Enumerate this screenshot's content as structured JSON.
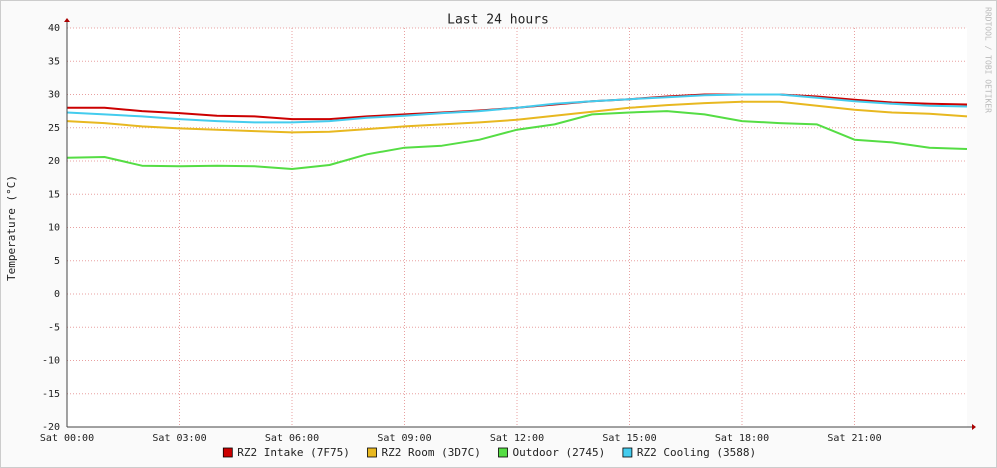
{
  "chart_data": {
    "type": "line",
    "title": "Last 24 hours",
    "y_label": "Temperature (°C)",
    "watermark": "RRDTOOL / TOBI OETIKER",
    "x": [
      0,
      1,
      2,
      3,
      4,
      5,
      6,
      7,
      8,
      9,
      10,
      11,
      12,
      13,
      14,
      15,
      16,
      17,
      18,
      19,
      20,
      21,
      22,
      23,
      24
    ],
    "xlim": [
      0,
      24
    ],
    "xticks": [
      {
        "value": 0,
        "label": "Sat 00:00"
      },
      {
        "value": 3,
        "label": "Sat 03:00"
      },
      {
        "value": 6,
        "label": "Sat 06:00"
      },
      {
        "value": 9,
        "label": "Sat 09:00"
      },
      {
        "value": 12,
        "label": "Sat 12:00"
      },
      {
        "value": 15,
        "label": "Sat 15:00"
      },
      {
        "value": 18,
        "label": "Sat 18:00"
      },
      {
        "value": 21,
        "label": "Sat 21:00"
      }
    ],
    "ylim": [
      -20,
      40
    ],
    "yticks": [
      -20,
      -15,
      -10,
      -5,
      0,
      5,
      10,
      15,
      20,
      25,
      30,
      35,
      40
    ],
    "grid": true,
    "legend": "bottom",
    "series": [
      {
        "name": "RZ2 Intake (7F75)",
        "color": "#cc0000",
        "values": [
          28,
          28,
          27.5,
          27.2,
          26.8,
          26.7,
          26.3,
          26.3,
          26.7,
          27,
          27.3,
          27.6,
          28,
          28.5,
          29,
          29.3,
          29.7,
          30,
          30,
          30,
          29.7,
          29.2,
          28.8,
          28.6,
          28.5
        ]
      },
      {
        "name": "RZ2 Room (3D7C)",
        "color": "#e8b820",
        "values": [
          26,
          25.7,
          25.2,
          24.9,
          24.7,
          24.5,
          24.3,
          24.4,
          24.8,
          25.2,
          25.5,
          25.8,
          26.2,
          26.8,
          27.4,
          28,
          28.4,
          28.7,
          28.9,
          28.9,
          28.3,
          27.7,
          27.3,
          27.1,
          26.7
        ]
      },
      {
        "name": "Outdoor (2745)",
        "color": "#55dd44",
        "values": [
          20.5,
          20.6,
          19.3,
          19.2,
          19.3,
          19.2,
          18.8,
          19.4,
          21,
          22,
          22.3,
          23.2,
          24.7,
          25.5,
          27,
          27.3,
          27.5,
          27,
          26,
          25.7,
          25.5,
          23.2,
          22.8,
          22,
          21.8
        ]
      },
      {
        "name": "RZ2 Cooling (3588)",
        "color": "#44ccee",
        "values": [
          27.3,
          27,
          26.7,
          26.3,
          26,
          25.8,
          25.8,
          26,
          26.5,
          26.8,
          27.2,
          27.5,
          28,
          28.6,
          29,
          29.3,
          29.6,
          29.9,
          30,
          30,
          29.5,
          29,
          28.6,
          28.3,
          28.2
        ]
      }
    ]
  }
}
